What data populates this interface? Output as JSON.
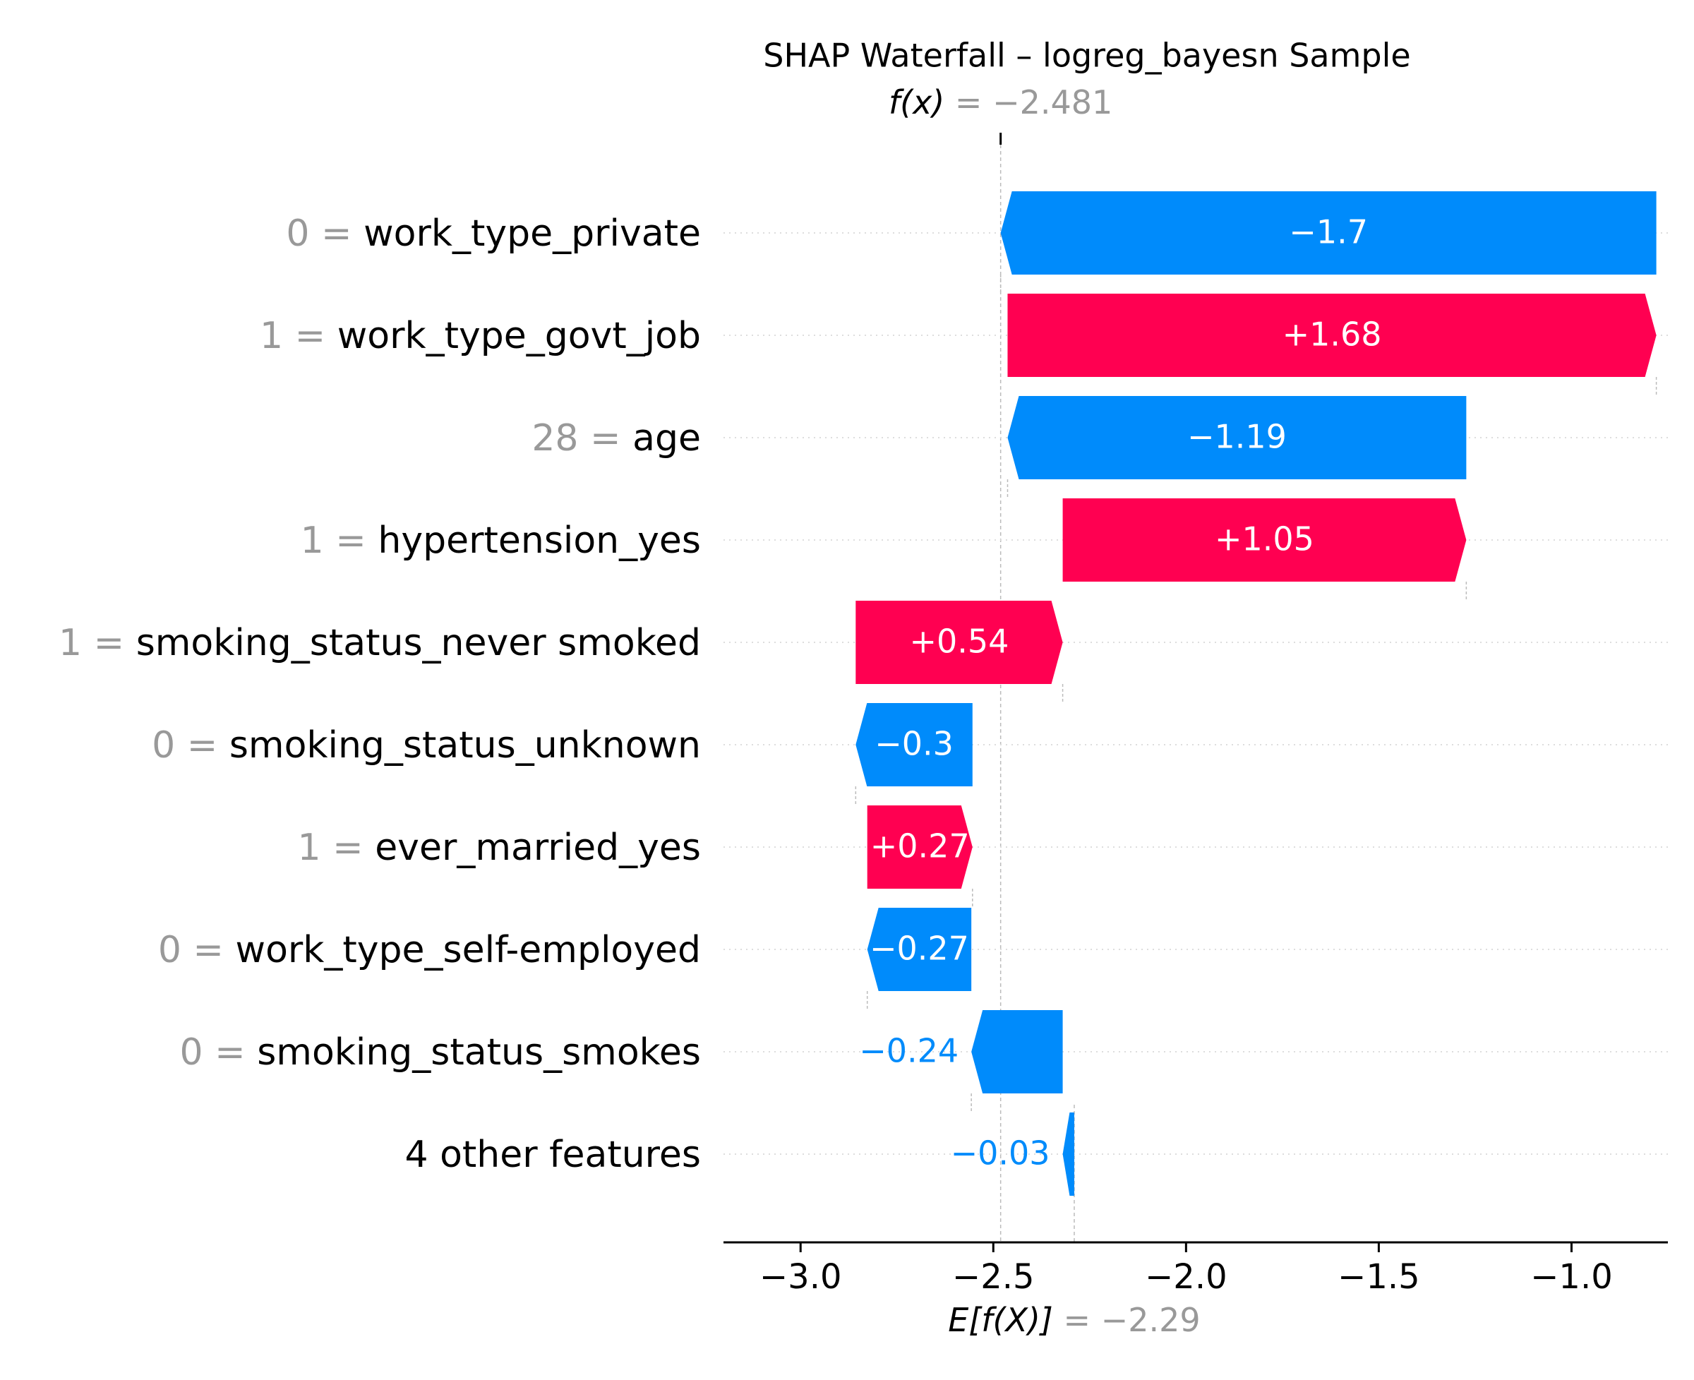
{
  "chart_data": {
    "type": "waterfall",
    "title": "SHAP Waterfall – logreg_bayesn Sample",
    "fx": {
      "symbol": "f(x)",
      "value": "−2.481",
      "x": -2.481
    },
    "expected": {
      "symbol": "E[f(X)]",
      "value": "−2.29",
      "x": -2.29
    },
    "xlim": [
      -3.2,
      -0.75
    ],
    "xticks": [
      {
        "value": -3.0,
        "label": "−3.0"
      },
      {
        "value": -2.5,
        "label": "−2.5"
      },
      {
        "value": -2.0,
        "label": "−2.0"
      },
      {
        "value": -1.5,
        "label": "−1.5"
      },
      {
        "value": -1.0,
        "label": "−1.0"
      }
    ],
    "features": [
      {
        "value_text": "0",
        "name": "work_type_private",
        "shap": -1.7,
        "label": "−1.7",
        "start": -0.78,
        "end": -2.481
      },
      {
        "value_text": "1",
        "name": "work_type_govt_job",
        "shap": 1.68,
        "label": "+1.68",
        "start": -2.463,
        "end": -0.78
      },
      {
        "value_text": "28",
        "name": "age",
        "shap": -1.19,
        "label": "−1.19",
        "start": -1.273,
        "end": -2.463
      },
      {
        "value_text": "1",
        "name": "hypertension_yes",
        "shap": 1.05,
        "label": "+1.05",
        "start": -2.32,
        "end": -1.273
      },
      {
        "value_text": "1",
        "name": "smoking_status_never smoked",
        "shap": 0.54,
        "label": "+0.54",
        "start": -2.857,
        "end": -2.32
      },
      {
        "value_text": "0",
        "name": "smoking_status_unknown",
        "shap": -0.3,
        "label": "−0.3",
        "start": -2.554,
        "end": -2.857
      },
      {
        "value_text": "1",
        "name": "ever_married_yes",
        "shap": 0.27,
        "label": "+0.27",
        "start": -2.827,
        "end": -2.554
      },
      {
        "value_text": "0",
        "name": "work_type_self-employed",
        "shap": -0.27,
        "label": "−0.27",
        "start": -2.557,
        "end": -2.827
      },
      {
        "value_text": "0",
        "name": "smoking_status_smokes",
        "shap": -0.24,
        "label": "−0.24",
        "start": -2.32,
        "end": -2.557
      },
      {
        "value_text": "",
        "name": "4 other features",
        "shap": -0.03,
        "label": "−0.03",
        "start": -2.29,
        "end": -2.32
      }
    ],
    "colors": {
      "positive": "#ff0051",
      "negative": "#008bfb",
      "muted": "#999999",
      "text": "#000000"
    }
  }
}
